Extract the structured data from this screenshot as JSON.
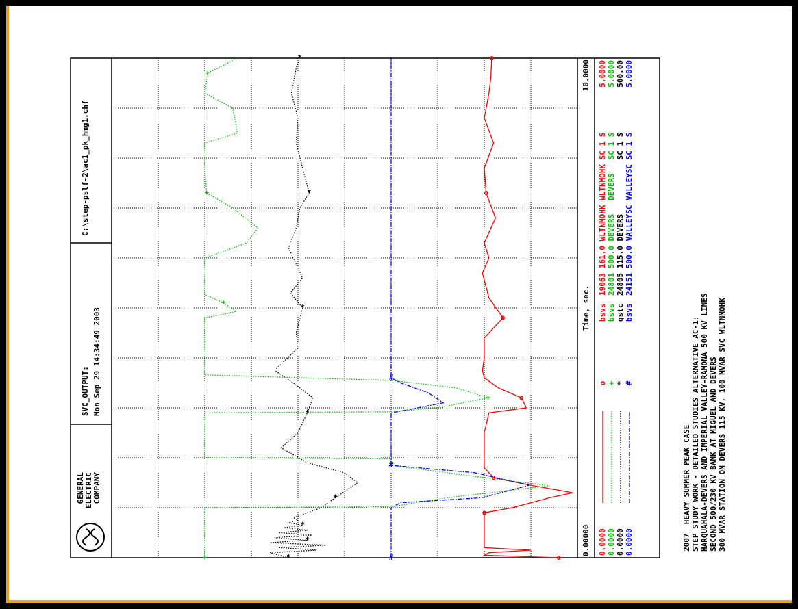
{
  "chart_data": {
    "type": "line",
    "title": "SVC_OUTPUT:",
    "subtitle": "Mon Sep 29 14:34:49 2003",
    "file": "C:\\step-pslf-2\\ac1_pk_hmg1.chf",
    "company": [
      "GENERAL",
      "ELECTRIC",
      "COMPANY"
    ],
    "xlabel": "Time, sec.",
    "xlim": [
      0,
      10
    ],
    "xticks": [
      {
        "value": 0,
        "label": "0.00000"
      },
      {
        "value": 10,
        "label": "10.0000"
      }
    ],
    "grid": true,
    "series": [
      {
        "name": "bsvs",
        "description": "19063 161.0 WLTNMOHK WLTNMOHK SC 1 S",
        "symbol": "o",
        "color": "#ff0000",
        "style": "solid",
        "yticks": [
          {
            "value": 0,
            "label": "0.0000"
          },
          {
            "value": 5,
            "label": "5.0000"
          }
        ],
        "x": [
          0,
          0.05,
          0.1,
          0.15,
          0.2,
          0.5,
          0.9,
          1.0,
          1.1,
          1.2,
          1.3,
          1.45,
          1.6,
          1.8,
          2.0,
          2.5,
          2.9,
          3.0,
          3.2,
          3.4,
          3.6,
          3.75,
          4.0,
          4.4,
          4.8,
          5.2,
          5.7,
          6.0,
          6.3,
          6.8,
          7.3,
          7.8,
          8.3,
          8.8,
          9.3,
          9.6,
          10
        ],
        "values": [
          0.2,
          1.0,
          0.95,
          0.5,
          1.0,
          1.0,
          1.0,
          0.7,
          0.5,
          0.3,
          0.05,
          0.5,
          0.9,
          1.0,
          1.0,
          1.0,
          0.95,
          0.55,
          0.6,
          0.85,
          1.0,
          1.02,
          1.0,
          1.0,
          0.8,
          0.95,
          1.02,
          0.95,
          1.0,
          0.88,
          0.98,
          1.0,
          0.9,
          1.0,
          0.95,
          0.93,
          0.92
        ]
      },
      {
        "name": "bsvs",
        "description": "24801 500.0 DEVERS   DEVERS   SC 1 S",
        "symbol": "+",
        "color": "#00c000",
        "style": "dotted",
        "yticks": [
          {
            "value": 0,
            "label": "0.0000"
          },
          {
            "value": 5,
            "label": "5.0000"
          }
        ],
        "x": [
          0,
          1.0,
          1.02,
          1.2,
          1.44,
          1.65,
          1.85,
          1.98,
          2.0,
          2.9,
          2.92,
          3.0,
          3.2,
          3.4,
          3.55,
          3.66,
          4.8,
          4.93,
          5.1,
          5.27,
          6.0,
          6.3,
          6.6,
          7.0,
          7.3,
          7.8,
          8.3,
          8.5,
          9.0,
          9.3,
          9.7,
          10
        ],
        "values": [
          4.0,
          4.0,
          2.0,
          1.4,
          0.3,
          1.2,
          2.0,
          2.0,
          4.0,
          4.0,
          2.0,
          1.5,
          0.96,
          1.3,
          2.0,
          4.0,
          4.0,
          3.66,
          3.8,
          4.0,
          4.0,
          3.55,
          3.43,
          3.7,
          3.98,
          4.0,
          4.0,
          3.65,
          3.7,
          4.0,
          3.97,
          3.65
        ]
      },
      {
        "name": "qstc",
        "description": "24805 115.0 DEVERS            SC 1 S",
        "symbol": "*",
        "color": "#000000",
        "style": "dotted",
        "yticks": [
          {
            "value": 0,
            "label": "0.0000"
          },
          {
            "value": 500,
            "label": "500.00"
          }
        ],
        "x": [
          0,
          0.1,
          0.15,
          0.2,
          0.25,
          0.3,
          0.35,
          0.4,
          0.45,
          0.5,
          0.55,
          0.6,
          0.65,
          0.7,
          0.75,
          0.8,
          0.9,
          1.0,
          1.2,
          1.5,
          1.7,
          1.9,
          2.2,
          2.5,
          2.9,
          3.2,
          3.5,
          3.75,
          4.2,
          4.5,
          5.0,
          5.3,
          5.6,
          6.2,
          6.6,
          7.0,
          7.3,
          7.8,
          8.3,
          8.8,
          9.3,
          9.8,
          10
        ],
        "values": [
          310,
          330,
          280,
          320,
          270,
          330,
          290,
          325,
          285,
          320,
          290,
          315,
          295,
          310,
          300,
          305,
          290,
          275,
          260,
          236,
          250,
          290,
          318,
          300,
          290,
          284,
          305,
          325,
          300,
          302,
          295,
          308,
          295,
          310,
          302,
          298,
          288,
          295,
          302,
          300,
          307,
          302,
          298
        ]
      },
      {
        "name": "bsvs",
        "description": "24151 500.0 VALLEYSC VALLEYSC SC 1 S",
        "symbol": "#",
        "color": "#0000ff",
        "style": "dashdot",
        "yticks": [
          {
            "value": 0,
            "label": "0.0000"
          },
          {
            "value": 5,
            "label": "5.0000"
          }
        ],
        "x": [
          0,
          1.0,
          1.1,
          1.2,
          1.45,
          1.7,
          1.85,
          2.9,
          2.95,
          3.1,
          3.3,
          3.5,
          3.6,
          10
        ],
        "values": [
          2.0,
          2.0,
          1.9,
          1.03,
          0.52,
          1.1,
          2.0,
          2.0,
          1.85,
          1.44,
          1.6,
          1.9,
          2.0,
          2.0
        ]
      }
    ],
    "notes": [
      "2007  HEAVY SUMMER PEAK CASE",
      "STEP STUDY WORK - DETAILED STUDIES ALTERNATIVE AC-1:",
      "HARQUAHALA-DEVERS AND IMPERIAL VALLEY-RAMONA 500 KV LINES",
      "SECOND 500/230 KV BANK AT MIGUEL AND DEVERS",
      "300 MVAR STATION ON DEVERS 115 KV, 100 MVAR SVC WLTNMOHK"
    ]
  }
}
